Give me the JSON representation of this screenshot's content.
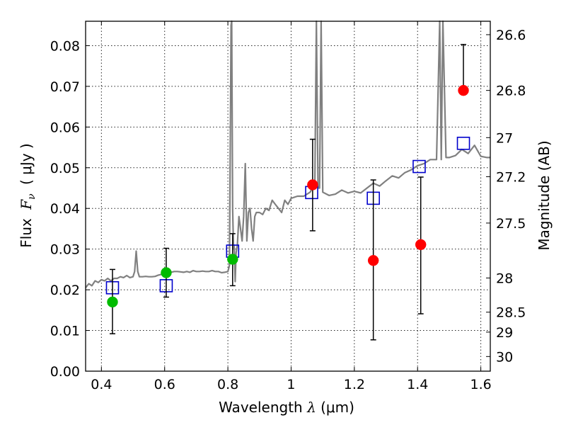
{
  "chart_data": {
    "type": "scatter",
    "xlabel_prefix": "Wavelength",
    "xlabel_symbol": "λ",
    "xlabel_unit": "(μm)",
    "ylabel_prefix": "Flux",
    "ylabel_symbol": "F",
    "ylabel_subscript": "ν",
    "ylabel_unit": "( μJy )",
    "y2label": "Magnitude (AB)",
    "xlim": [
      0.35,
      1.63
    ],
    "ylim": [
      0.0,
      0.086
    ],
    "grid": true,
    "x_ticks": [
      {
        "value": 0.4,
        "label": "0.4"
      },
      {
        "value": 0.6,
        "label": "0.6"
      },
      {
        "value": 0.8,
        "label": "0.8"
      },
      {
        "value": 1.0,
        "label": "1"
      },
      {
        "value": 1.2,
        "label": "1.2"
      },
      {
        "value": 1.4,
        "label": "1.4"
      },
      {
        "value": 1.6,
        "label": "1.6"
      }
    ],
    "y_ticks": [
      {
        "value": 0.0,
        "label": "0.00"
      },
      {
        "value": 0.01,
        "label": "0.01"
      },
      {
        "value": 0.02,
        "label": "0.02"
      },
      {
        "value": 0.03,
        "label": "0.03"
      },
      {
        "value": 0.04,
        "label": "0.04"
      },
      {
        "value": 0.05,
        "label": "0.05"
      },
      {
        "value": 0.06,
        "label": "0.06"
      },
      {
        "value": 0.07,
        "label": "0.07"
      },
      {
        "value": 0.08,
        "label": "0.08"
      }
    ],
    "y2_ticks": [
      {
        "label": "26.6",
        "flux": 0.0827
      },
      {
        "label": "26.8",
        "flux": 0.069
      },
      {
        "label": "27",
        "flux": 0.0574
      },
      {
        "label": "27.2",
        "flux": 0.0478
      },
      {
        "label": "27.5",
        "flux": 0.0364
      },
      {
        "label": "28",
        "flux": 0.0229
      },
      {
        "label": "28.5",
        "flux": 0.0145
      },
      {
        "label": "29",
        "flux": 0.0096
      },
      {
        "label": "30",
        "flux": 0.0036
      }
    ],
    "series": [
      {
        "kind": "spectrum",
        "color": "#808080",
        "x": [
          0.35,
          0.36,
          0.37,
          0.38,
          0.39,
          0.4,
          0.41,
          0.42,
          0.43,
          0.44,
          0.45,
          0.46,
          0.47,
          0.48,
          0.49,
          0.5,
          0.505,
          0.51,
          0.515,
          0.52,
          0.53,
          0.54,
          0.55,
          0.56,
          0.57,
          0.58,
          0.59,
          0.6,
          0.61,
          0.62,
          0.63,
          0.64,
          0.65,
          0.66,
          0.67,
          0.68,
          0.69,
          0.7,
          0.71,
          0.72,
          0.73,
          0.74,
          0.75,
          0.76,
          0.77,
          0.78,
          0.79,
          0.8,
          0.805,
          0.81,
          0.812,
          0.815,
          0.818,
          0.82,
          0.823,
          0.826,
          0.83,
          0.835,
          0.84,
          0.845,
          0.85,
          0.855,
          0.86,
          0.865,
          0.87,
          0.875,
          0.88,
          0.885,
          0.89,
          0.9,
          0.91,
          0.92,
          0.93,
          0.94,
          0.95,
          0.96,
          0.97,
          0.98,
          0.99,
          1.0,
          1.02,
          1.04,
          1.06,
          1.075,
          1.08,
          1.085,
          1.09,
          1.095,
          1.1,
          1.12,
          1.14,
          1.16,
          1.18,
          1.2,
          1.22,
          1.24,
          1.26,
          1.28,
          1.3,
          1.32,
          1.34,
          1.36,
          1.38,
          1.4,
          1.42,
          1.44,
          1.46,
          1.47,
          1.475,
          1.48,
          1.49,
          1.5,
          1.52,
          1.54,
          1.56,
          1.58,
          1.6,
          1.62,
          1.63
        ],
        "y": [
          0.0205,
          0.0215,
          0.021,
          0.0222,
          0.0218,
          0.0225,
          0.0222,
          0.0228,
          0.0222,
          0.0228,
          0.0228,
          0.0232,
          0.023,
          0.0235,
          0.023,
          0.0232,
          0.0245,
          0.0295,
          0.0245,
          0.0232,
          0.0232,
          0.0233,
          0.0232,
          0.0232,
          0.0233,
          0.0236,
          0.0238,
          0.024,
          0.0243,
          0.0243,
          0.0245,
          0.0245,
          0.0244,
          0.0243,
          0.0245,
          0.0243,
          0.0247,
          0.0245,
          0.0245,
          0.0246,
          0.0245,
          0.0245,
          0.0247,
          0.0245,
          0.0245,
          0.0242,
          0.0243,
          0.0245,
          0.026,
          0.085,
          0.086,
          0.04,
          0.03,
          0.031,
          0.022,
          0.029,
          0.031,
          0.038,
          0.035,
          0.032,
          0.038,
          0.051,
          0.032,
          0.039,
          0.04,
          0.035,
          0.032,
          0.038,
          0.039,
          0.039,
          0.0385,
          0.04,
          0.0395,
          0.042,
          0.041,
          0.04,
          0.039,
          0.042,
          0.041,
          0.0425,
          0.043,
          0.043,
          0.044,
          0.046,
          0.086,
          0.045,
          0.045,
          0.086,
          0.044,
          0.0432,
          0.0435,
          0.0445,
          0.0438,
          0.0442,
          0.0438,
          0.045,
          0.0462,
          0.0455,
          0.0468,
          0.048,
          0.0475,
          0.0488,
          0.0495,
          0.0505,
          0.051,
          0.052,
          0.052,
          0.086,
          0.052,
          0.086,
          0.0525,
          0.0525,
          0.053,
          0.0545,
          0.0535,
          0.0555,
          0.0528,
          0.0525,
          0.0525
        ]
      },
      {
        "kind": "model-photometry",
        "marker": "open-square",
        "color": "#0000cc",
        "x": [
          0.435,
          0.605,
          0.815,
          1.065,
          1.26,
          1.405,
          1.545
        ],
        "y": [
          0.0205,
          0.021,
          0.0295,
          0.0439,
          0.0425,
          0.0503,
          0.056
        ]
      },
      {
        "kind": "observed",
        "marker": "filled-circle",
        "color": "#00bb00",
        "x": [
          0.435,
          0.605,
          0.815
        ],
        "y": [
          0.017,
          0.0242,
          0.0275
        ],
        "err_low": [
          0.0092,
          0.0182,
          0.021
        ],
        "err_high": [
          0.025,
          0.0302,
          0.0338
        ]
      },
      {
        "kind": "observed",
        "marker": "filled-circle",
        "color": "#ff0000",
        "x": [
          1.068,
          1.26,
          1.41,
          1.545
        ],
        "y": [
          0.0458,
          0.0272,
          0.0311,
          0.069
        ],
        "err_low": [
          0.0345,
          0.0077,
          0.0141,
          0.069
        ],
        "err_high": [
          0.057,
          0.047,
          0.0477,
          0.0803
        ]
      }
    ]
  }
}
